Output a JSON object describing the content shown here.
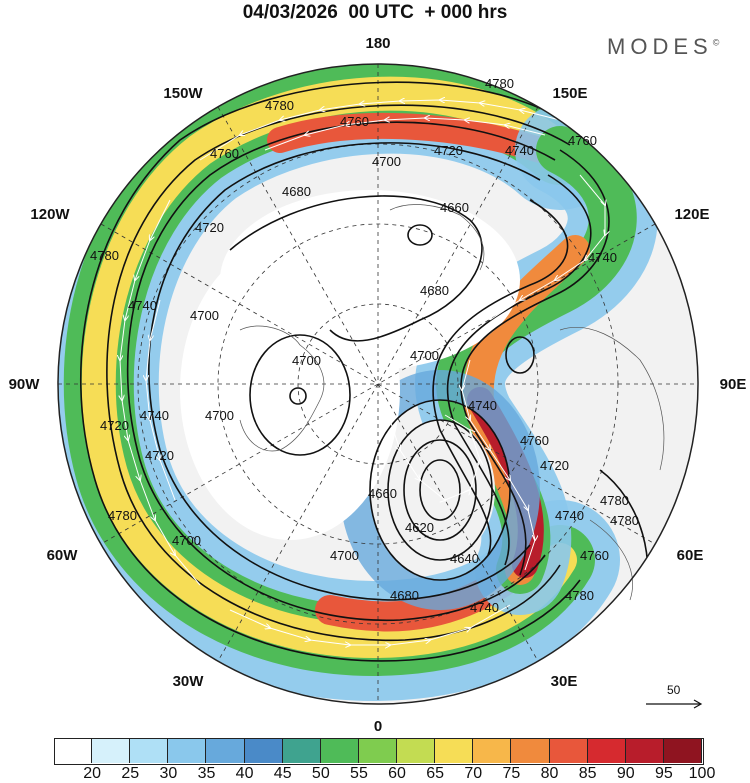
{
  "title": "04/03/2026  00 UTC  + 000 hrs",
  "brand": "MODES",
  "brand_mark": "©",
  "longitude_labels": [
    {
      "key": "n180",
      "text": "180"
    },
    {
      "key": "w150",
      "text": "150W"
    },
    {
      "key": "e150",
      "text": "150E"
    },
    {
      "key": "w120",
      "text": "120W"
    },
    {
      "key": "e120",
      "text": "120E"
    },
    {
      "key": "w90",
      "text": "90W"
    },
    {
      "key": "e90",
      "text": "90E"
    },
    {
      "key": "w60",
      "text": "60W"
    },
    {
      "key": "e60",
      "text": "60E"
    },
    {
      "key": "w30",
      "text": "30W"
    },
    {
      "key": "e30",
      "text": "30E"
    },
    {
      "key": "s0",
      "text": "0"
    }
  ],
  "contour_labels": [
    "4780",
    "4780",
    "4760",
    "4760",
    "4720",
    "4700",
    "4740",
    "4760",
    "4680",
    "4660",
    "4720",
    "4740",
    "4780",
    "4740",
    "4680",
    "4700",
    "4700",
    "4700",
    "4700",
    "4740",
    "4720",
    "4780",
    "4700",
    "4720",
    "4740",
    "4760",
    "4780",
    "4720",
    "4740",
    "4620",
    "4640",
    "4660",
    "4680",
    "4700",
    "4740",
    "4760",
    "4780",
    "4780"
  ],
  "reference_vector": {
    "value": "50",
    "icon": "right-arrow-icon"
  },
  "colorbar": {
    "units_note": "",
    "ticks": [
      "20",
      "25",
      "30",
      "35",
      "40",
      "45",
      "50",
      "55",
      "60",
      "65",
      "70",
      "75",
      "80",
      "85",
      "90",
      "95",
      "100"
    ],
    "colors": [
      "#ffffff",
      "#d6f1fb",
      "#afe0f6",
      "#8ac8ec",
      "#67a9dc",
      "#4a8ac8",
      "#3fa38f",
      "#4fbb58",
      "#7fcc4f",
      "#c3dc52",
      "#f6dd56",
      "#f7b74a",
      "#f08a3d",
      "#e8573b",
      "#d62a2f",
      "#b81d2b",
      "#8f1420"
    ]
  },
  "chart_data": {
    "type": "heatmap",
    "title": "04/03/2026  00 UTC  + 000 hrs",
    "projection": "north polar stereographic",
    "variable_shaded": "wind speed",
    "variable_contoured": "geopotential height",
    "contour_levels": [
      4620,
      4640,
      4660,
      4680,
      4700,
      4720,
      4740,
      4760,
      4780
    ],
    "colorbar_levels": [
      20,
      25,
      30,
      35,
      40,
      45,
      50,
      55,
      60,
      65,
      70,
      75,
      80,
      85,
      90,
      95,
      100
    ],
    "reference_vector": 50,
    "longitudes": [
      "180",
      "150W",
      "150E",
      "120W",
      "120E",
      "90W",
      "90E",
      "60W",
      "60E",
      "30W",
      "30E",
      "0"
    ]
  }
}
